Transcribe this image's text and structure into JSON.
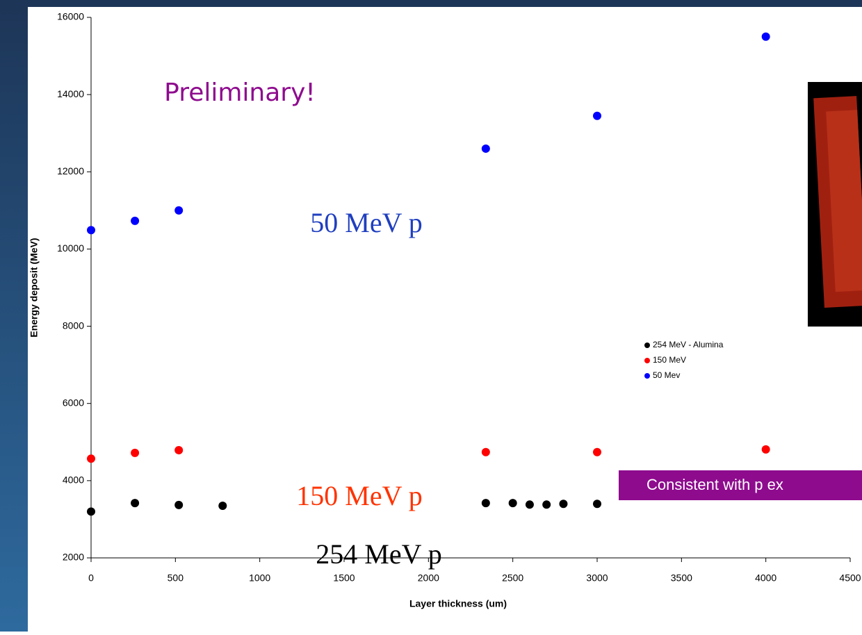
{
  "chart_data": {
    "type": "scatter",
    "x_label": "Layer thickness (um)",
    "y_label": "Energy deposit (MeV)",
    "xlim": [
      0,
      4500
    ],
    "xticks": [
      0,
      500,
      1000,
      1500,
      2000,
      2500,
      3000,
      3500,
      4000,
      4500
    ],
    "ylim": [
      2000,
      16000
    ],
    "yticks": [
      2000,
      4000,
      6000,
      8000,
      10000,
      12000,
      14000,
      16000
    ],
    "series": [
      {
        "name": "254 MeV - Alumina",
        "color": "#000000",
        "x": [
          0,
          260,
          520,
          780,
          2340,
          2500,
          2600,
          2700,
          2800,
          3000
        ],
        "values": [
          3200,
          3420,
          3370,
          3350,
          3420,
          3420,
          3380,
          3380,
          3400,
          3400
        ]
      },
      {
        "name": "150 MeV",
        "color": "#ff0000",
        "x": [
          0,
          260,
          520,
          2340,
          3000,
          4000
        ],
        "values": [
          4570,
          4720,
          4790,
          4740,
          4740,
          4810
        ]
      },
      {
        "name": "50 Mev",
        "color": "#0000ff",
        "x": [
          0,
          260,
          520,
          2340,
          3000,
          4000
        ],
        "values": [
          10490,
          10730,
          11000,
          12600,
          13450,
          15500
        ]
      }
    ],
    "annotations": [
      "Preliminary!",
      "50 MeV p",
      "150 MeV p",
      "254 MeV p",
      "Consistent with p ex"
    ]
  }
}
